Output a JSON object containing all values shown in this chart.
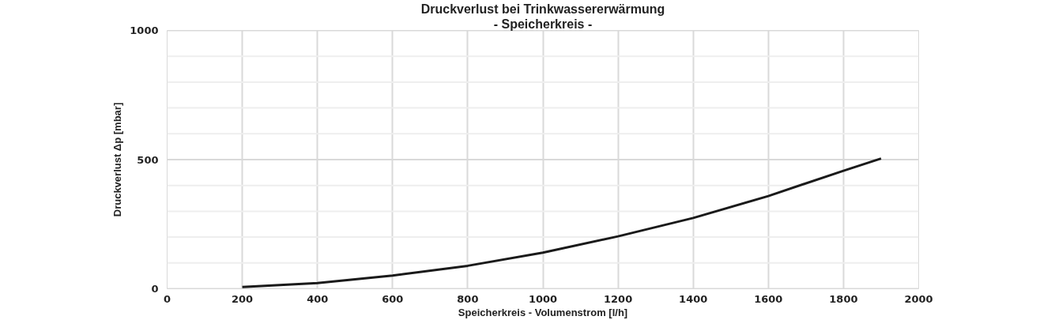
{
  "chart_data": {
    "type": "line",
    "title": "Druckverlust bei Trinkwassererwärmung",
    "subtitle": "- Speicherkreis -",
    "xlabel": "Speicherkreis - Volumenstrom [l/h]",
    "ylabel": "Druckverlust Δp [mbar]",
    "x": [
      200,
      400,
      600,
      800,
      1000,
      1200,
      1400,
      1600,
      1800,
      1900
    ],
    "series": [
      {
        "color": "#1a1a1a",
        "values": [
          7,
          22,
          51,
          89,
          140,
          203,
          274,
          359,
          457,
          504
        ]
      }
    ],
    "xlim": [
      0,
      2000
    ],
    "xticks": [
      0,
      200,
      400,
      600,
      800,
      1000,
      1200,
      1400,
      1600,
      1800,
      2000
    ],
    "ylim": [
      0,
      1000
    ],
    "yticks": [
      0,
      {
        "value": 100,
        "label": null
      },
      {
        "value": 200,
        "label": null
      },
      {
        "value": 300,
        "label": null
      },
      {
        "value": 400,
        "label": null
      },
      500,
      {
        "value": 600,
        "label": null
      },
      {
        "value": 700,
        "label": null
      },
      {
        "value": 800,
        "label": null
      },
      {
        "value": 900,
        "label": null
      },
      1000
    ],
    "grid": true,
    "marker": "none",
    "line_style": "solid"
  }
}
